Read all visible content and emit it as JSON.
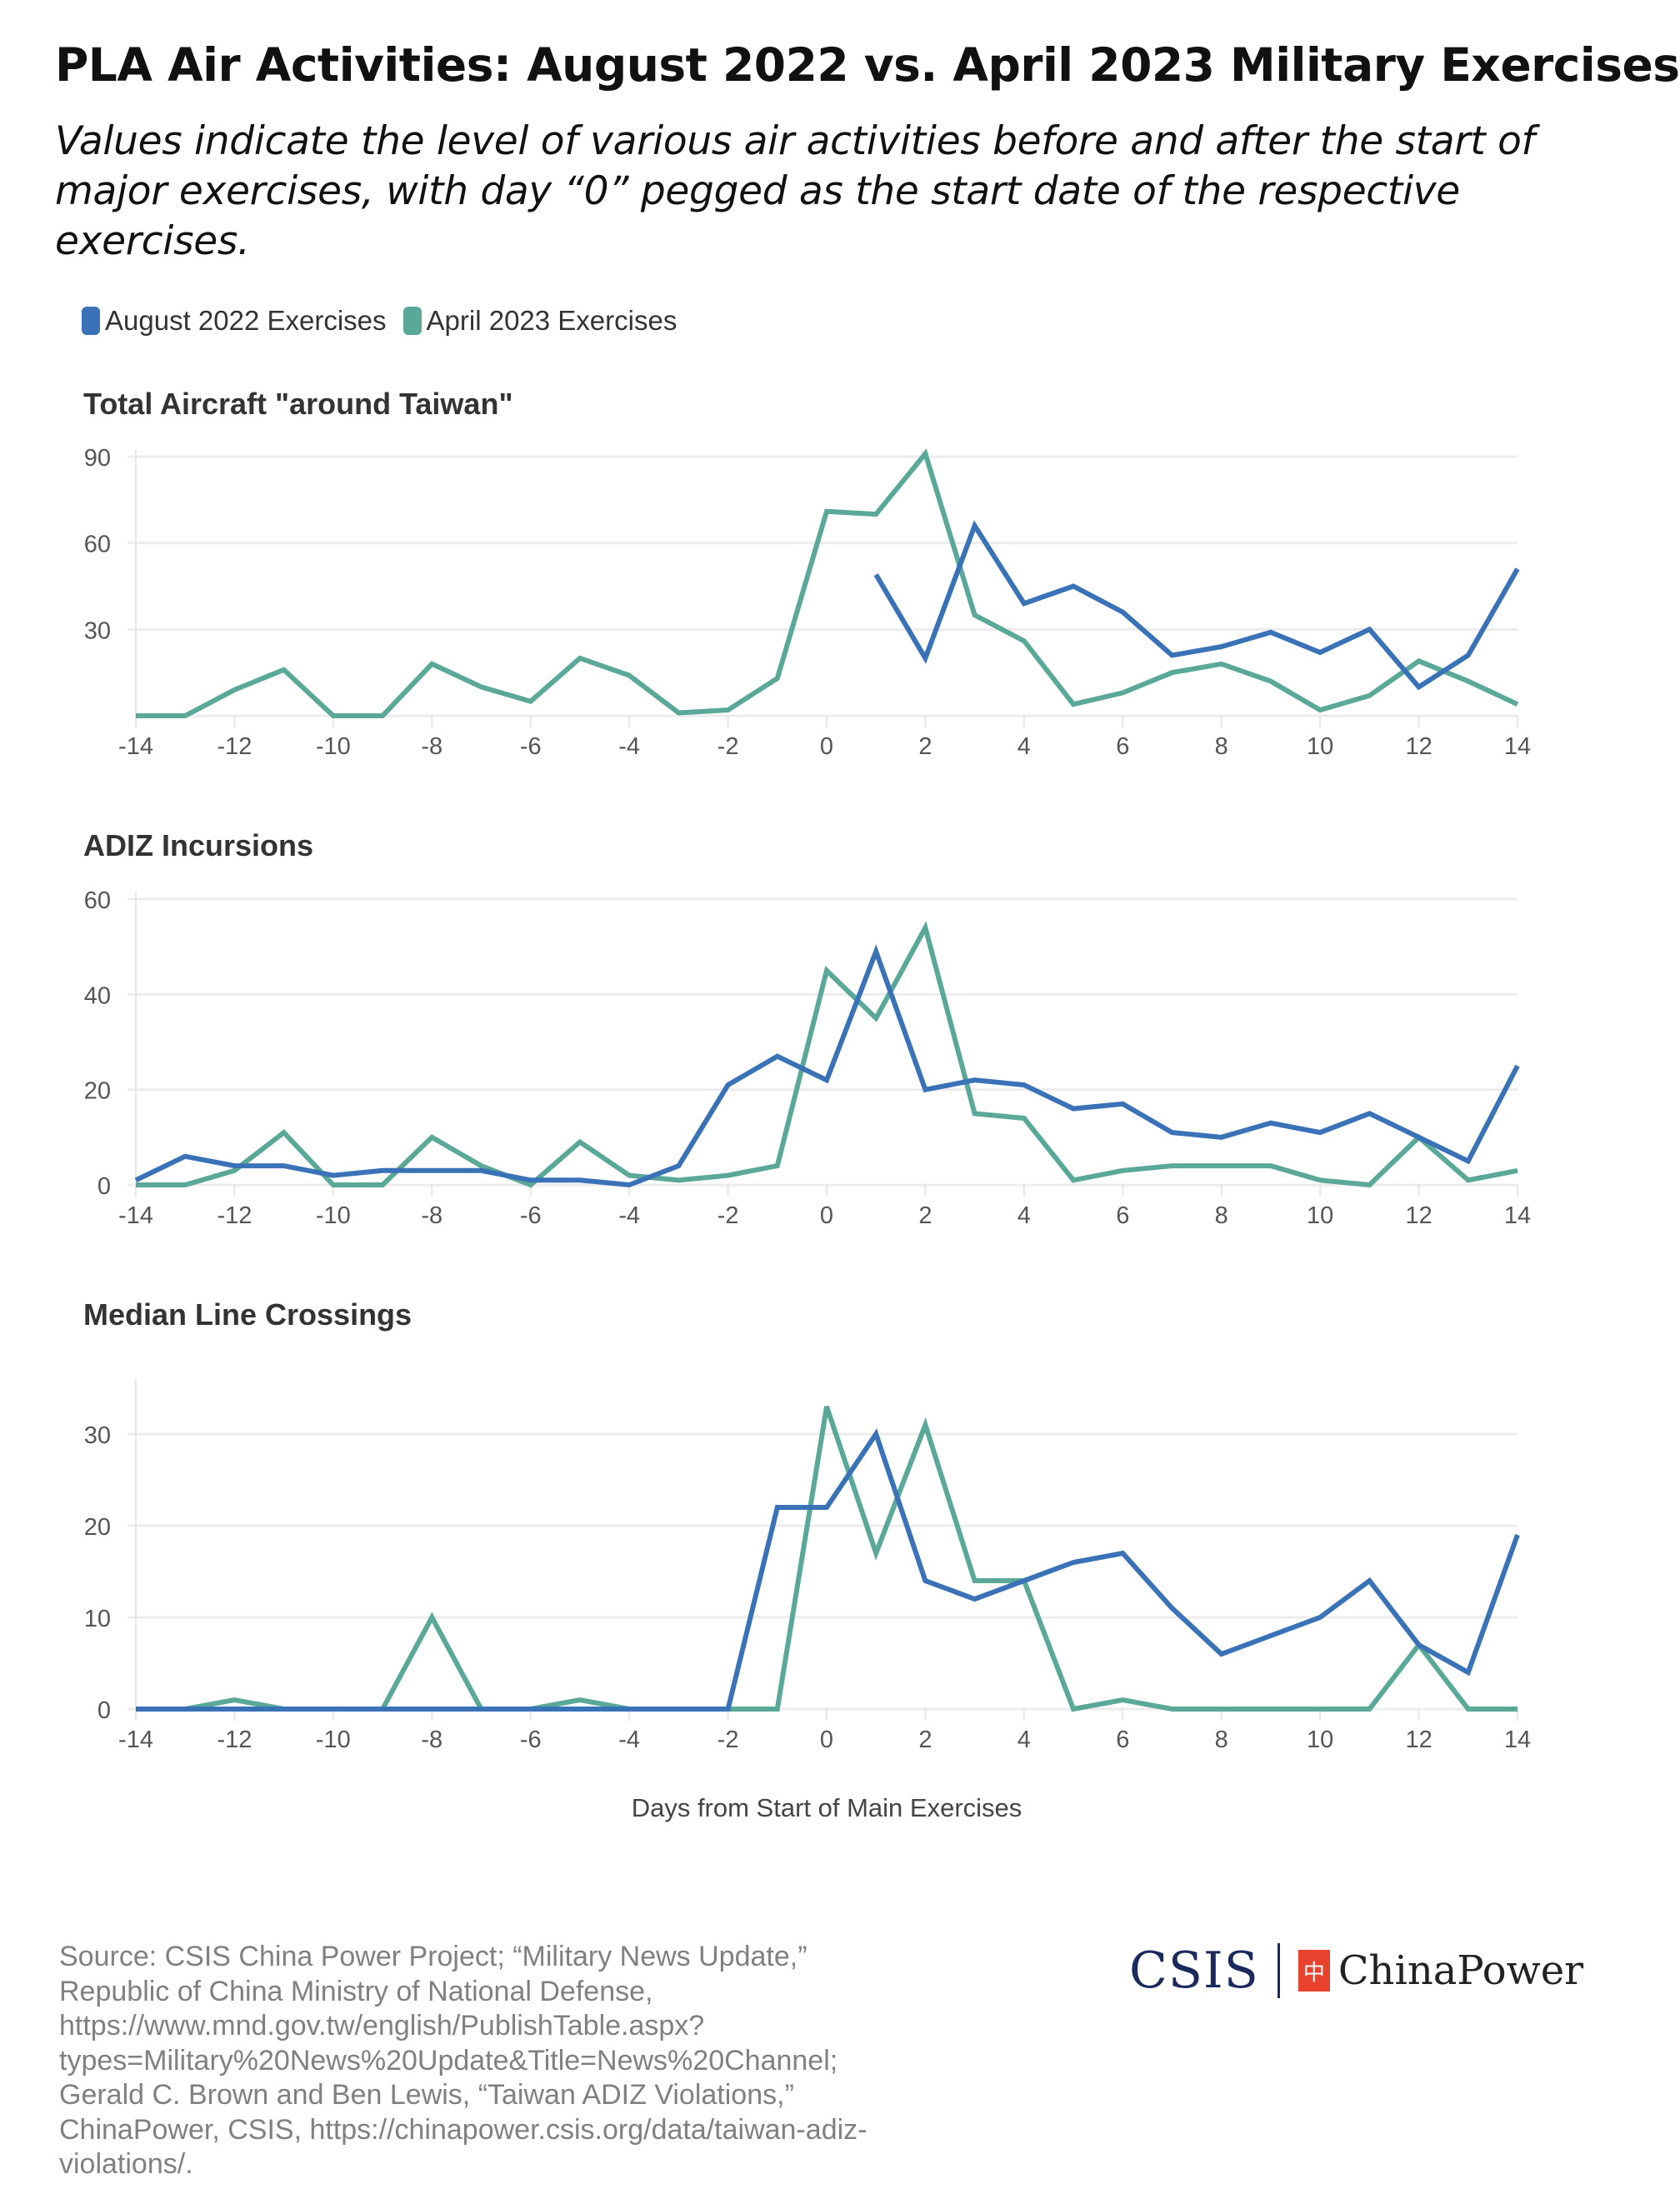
{
  "title": "PLA Air Activities: August 2022 vs. April 2023 Military Exercises",
  "subtitle": "Values indicate the level of various air activities before and after the start of major exercises, with day “0” pegged as the start date of the respective exercises.",
  "legend": [
    {
      "label": "August 2022 Exercises",
      "color": "#3a72b8"
    },
    {
      "label": "April 2023 Exercises",
      "color": "#5aa897"
    }
  ],
  "chart_data": [
    {
      "type": "line",
      "title": "Total Aircraft \"around Taiwan\"",
      "x": [
        -14,
        -13,
        -12,
        -11,
        -10,
        -9,
        -8,
        -7,
        -6,
        -5,
        -4,
        -3,
        -2,
        -1,
        0,
        1,
        2,
        3,
        4,
        5,
        6,
        7,
        8,
        9,
        10,
        11,
        12,
        13,
        14
      ],
      "xticks": [
        "-14",
        "-12",
        "-10",
        "-8",
        "-6",
        "-4",
        "-2",
        "0",
        "2",
        "4",
        "6",
        "8",
        "10",
        "12",
        "14"
      ],
      "yticks": [
        "30",
        "60",
        "90"
      ],
      "ylim": [
        0,
        90
      ],
      "series": [
        {
          "name": "August 2022 Exercises",
          "values": [
            null,
            null,
            null,
            null,
            null,
            null,
            null,
            null,
            null,
            null,
            null,
            null,
            null,
            null,
            null,
            49,
            20,
            66,
            39,
            45,
            36,
            21,
            24,
            29,
            22,
            30,
            10,
            21,
            51
          ]
        },
        {
          "name": "April 2023 Exercises",
          "values": [
            0,
            0,
            9,
            16,
            0,
            0,
            18,
            10,
            5,
            20,
            14,
            1,
            2,
            13,
            71,
            70,
            91,
            35,
            26,
            4,
            8,
            15,
            18,
            12,
            2,
            7,
            19,
            12,
            4
          ]
        }
      ]
    },
    {
      "type": "line",
      "title": "ADIZ Incursions",
      "x": [
        -14,
        -13,
        -12,
        -11,
        -10,
        -9,
        -8,
        -7,
        -6,
        -5,
        -4,
        -3,
        -2,
        -1,
        0,
        1,
        2,
        3,
        4,
        5,
        6,
        7,
        8,
        9,
        10,
        11,
        12,
        13,
        14
      ],
      "xticks": [
        "-14",
        "-12",
        "-10",
        "-8",
        "-6",
        "-4",
        "-2",
        "0",
        "2",
        "4",
        "6",
        "8",
        "10",
        "12",
        "14"
      ],
      "yticks": [
        "0",
        "20",
        "40",
        "60"
      ],
      "ylim": [
        0,
        60
      ],
      "series": [
        {
          "name": "August 2022 Exercises",
          "values": [
            1,
            6,
            4,
            4,
            2,
            3,
            3,
            3,
            1,
            1,
            0,
            4,
            21,
            27,
            22,
            49,
            20,
            22,
            21,
            16,
            17,
            11,
            10,
            13,
            11,
            15,
            10,
            5,
            25
          ]
        },
        {
          "name": "April 2023 Exercises",
          "values": [
            0,
            0,
            3,
            11,
            0,
            0,
            10,
            4,
            0,
            9,
            2,
            1,
            2,
            4,
            45,
            35,
            54,
            15,
            14,
            1,
            3,
            4,
            4,
            4,
            1,
            0,
            10,
            1,
            3
          ]
        }
      ]
    },
    {
      "type": "line",
      "title": "Median Line Crossings",
      "xlabel": "Days from Start of Main Exercises",
      "x": [
        -14,
        -13,
        -12,
        -11,
        -10,
        -9,
        -8,
        -7,
        -6,
        -5,
        -4,
        -3,
        -2,
        -1,
        0,
        1,
        2,
        3,
        4,
        5,
        6,
        7,
        8,
        9,
        10,
        11,
        12,
        13,
        14
      ],
      "xticks": [
        "-14",
        "-12",
        "-10",
        "-8",
        "-6",
        "-4",
        "-2",
        "0",
        "2",
        "4",
        "6",
        "8",
        "10",
        "12",
        "14"
      ],
      "yticks": [
        "0",
        "10",
        "20",
        "30"
      ],
      "ylim": [
        0,
        35
      ],
      "series": [
        {
          "name": "August 2022 Exercises",
          "values": [
            0,
            0,
            0,
            0,
            0,
            0,
            0,
            0,
            0,
            0,
            0,
            0,
            0,
            22,
            22,
            30,
            14,
            12,
            14,
            16,
            17,
            11,
            6,
            8,
            10,
            14,
            7,
            4,
            19
          ]
        },
        {
          "name": "April 2023 Exercises",
          "values": [
            0,
            0,
            1,
            0,
            0,
            0,
            10,
            0,
            0,
            1,
            0,
            0,
            0,
            0,
            33,
            17,
            31,
            14,
            14,
            0,
            1,
            0,
            0,
            0,
            0,
            0,
            7,
            0,
            0
          ]
        }
      ]
    }
  ],
  "source": "Source: CSIS China Power Project; “Military News Update,” Republic of China Ministry of National Defense, https://www.mnd.gov.tw/english/PublishTable.aspx?types=Military%20News%20Update&Title=News%20Channel; Gerald C. Brown and Ben Lewis, “Taiwan ADIZ Violations,” ChinaPower, CSIS, https://chinapower.csis.org/data/taiwan-adiz-violations/.",
  "logo": {
    "csis": "CSIS",
    "chinapower": "ChinaPower"
  }
}
